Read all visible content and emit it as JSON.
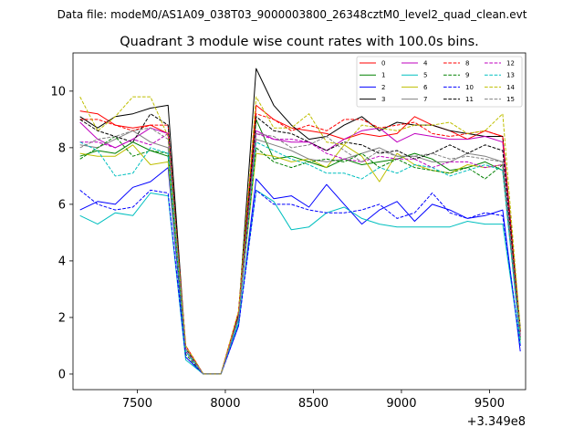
{
  "suptitle": "Data file: modeM0/AS1A09_038T03_9000003800_26348cztM0_level2_quad_clean.evt",
  "chart_data": {
    "type": "line",
    "title": "Quadrant 3 module wise count rates with 100.0s bins.",
    "x_offset_label": "+3.349e8",
    "xlim": [
      7135,
      9705
    ],
    "ylim": [
      -0.55,
      11.35
    ],
    "xticks": [
      7500,
      8000,
      8500,
      9000,
      9500
    ],
    "xtick_labels": [
      "7500",
      "8000",
      "8500",
      "9000",
      "9500"
    ],
    "yticks": [
      0,
      2,
      4,
      6,
      8,
      10
    ],
    "ytick_labels": [
      "0",
      "2",
      "4",
      "6",
      "8",
      "10"
    ],
    "x": [
      7175,
      7275,
      7375,
      7475,
      7575,
      7675,
      7775,
      7875,
      7975,
      8075,
      8175,
      8275,
      8375,
      8475,
      8575,
      8675,
      8775,
      8875,
      8975,
      9075,
      9175,
      9275,
      9375,
      9475,
      9575,
      9675
    ],
    "legend_ncol": 4,
    "legend_position": "top-right",
    "series": [
      {
        "name": "0",
        "color": "#ff0000",
        "dash": "solid",
        "values": [
          9.3,
          9.2,
          8.8,
          8.7,
          8.8,
          8.5,
          1.0,
          0.0,
          0.0,
          2.2,
          9.5,
          9.0,
          8.7,
          8.6,
          8.5,
          8.3,
          8.5,
          8.4,
          8.5,
          9.1,
          8.8,
          8.6,
          8.3,
          8.6,
          8.4,
          1.5
        ]
      },
      {
        "name": "1",
        "color": "#008000",
        "dash": "solid",
        "values": [
          7.7,
          7.9,
          7.8,
          8.2,
          7.9,
          7.7,
          0.8,
          0.0,
          0.0,
          2.0,
          9.0,
          7.6,
          7.7,
          7.5,
          7.3,
          7.6,
          7.4,
          7.5,
          7.6,
          7.8,
          7.6,
          7.2,
          7.3,
          7.5,
          7.2,
          1.2
        ]
      },
      {
        "name": "2",
        "color": "#0000ff",
        "dash": "solid",
        "values": [
          5.8,
          6.1,
          6.0,
          6.6,
          6.8,
          7.3,
          0.6,
          0.0,
          0.0,
          1.7,
          6.9,
          6.2,
          6.3,
          5.9,
          6.7,
          6.0,
          5.3,
          5.8,
          6.1,
          5.4,
          6.0,
          5.8,
          5.5,
          5.6,
          5.8,
          0.8
        ]
      },
      {
        "name": "3",
        "color": "#000000",
        "dash": "solid",
        "values": [
          9.1,
          8.7,
          9.1,
          9.2,
          9.4,
          9.5,
          0.9,
          0.0,
          0.0,
          2.1,
          10.8,
          9.5,
          8.8,
          8.3,
          8.4,
          8.8,
          9.1,
          8.6,
          8.9,
          8.8,
          8.8,
          8.6,
          8.5,
          8.4,
          8.4,
          1.6
        ]
      },
      {
        "name": "4",
        "color": "#bf00bf",
        "dash": "solid",
        "values": [
          8.9,
          8.3,
          8.0,
          8.3,
          8.7,
          8.5,
          0.9,
          0.0,
          0.0,
          2.0,
          8.6,
          8.3,
          8.2,
          8.2,
          7.9,
          8.3,
          8.6,
          8.7,
          8.2,
          8.5,
          8.4,
          8.3,
          8.3,
          8.4,
          8.2,
          1.4
        ]
      },
      {
        "name": "5",
        "color": "#00bfbf",
        "dash": "solid",
        "values": [
          5.6,
          5.3,
          5.7,
          5.6,
          6.4,
          6.3,
          0.5,
          0.0,
          0.0,
          1.8,
          6.5,
          6.1,
          5.1,
          5.2,
          5.7,
          5.9,
          5.5,
          5.3,
          5.2,
          5.2,
          5.2,
          5.2,
          5.4,
          5.3,
          5.3,
          1.0
        ]
      },
      {
        "name": "6",
        "color": "#bfbf00",
        "dash": "solid",
        "values": [
          7.8,
          7.7,
          7.7,
          8.1,
          7.4,
          7.5,
          0.8,
          0.0,
          0.0,
          2.0,
          7.8,
          7.7,
          7.5,
          7.6,
          7.3,
          8.1,
          7.7,
          6.8,
          7.8,
          7.4,
          7.2,
          7.1,
          7.4,
          7.3,
          7.4,
          1.3
        ]
      },
      {
        "name": "7",
        "color": "#808080",
        "dash": "solid",
        "values": [
          8.1,
          8.0,
          8.3,
          8.6,
          8.2,
          8.0,
          0.8,
          0.0,
          0.0,
          2.0,
          8.3,
          8.1,
          7.9,
          7.6,
          7.5,
          7.6,
          7.8,
          8.0,
          7.7,
          7.7,
          7.5,
          7.5,
          7.8,
          7.7,
          7.5,
          1.4
        ]
      },
      {
        "name": "8",
        "color": "#ff0000",
        "dash": "dashed",
        "values": [
          9.0,
          9.0,
          8.8,
          8.6,
          8.8,
          8.8,
          1.0,
          0.0,
          0.0,
          2.2,
          9.2,
          9.0,
          8.6,
          8.8,
          8.6,
          9.0,
          9.0,
          8.7,
          8.8,
          8.9,
          8.5,
          8.4,
          8.5,
          8.6,
          8.4,
          1.5
        ]
      },
      {
        "name": "9",
        "color": "#008000",
        "dash": "dashed",
        "values": [
          7.6,
          8.0,
          8.4,
          7.7,
          7.9,
          7.8,
          0.7,
          0.0,
          0.0,
          2.0,
          8.0,
          7.5,
          7.3,
          7.5,
          7.6,
          7.5,
          7.8,
          7.3,
          7.6,
          7.3,
          7.2,
          7.1,
          7.3,
          6.9,
          7.4,
          1.3
        ]
      },
      {
        "name": "10",
        "color": "#0000ff",
        "dash": "dashed",
        "values": [
          6.5,
          6.0,
          5.8,
          5.9,
          6.5,
          6.4,
          0.6,
          0.0,
          0.0,
          1.7,
          6.5,
          6.0,
          6.0,
          5.8,
          5.7,
          5.7,
          5.8,
          6.0,
          5.5,
          5.7,
          6.4,
          5.7,
          5.5,
          5.7,
          5.6,
          1.0
        ]
      },
      {
        "name": "11",
        "color": "#000000",
        "dash": "dashed",
        "values": [
          9.0,
          8.6,
          8.4,
          8.2,
          9.2,
          8.8,
          0.9,
          0.0,
          0.0,
          2.1,
          9.1,
          8.6,
          8.5,
          8.2,
          7.9,
          8.2,
          8.1,
          7.8,
          7.9,
          7.6,
          7.8,
          8.1,
          7.8,
          8.1,
          7.9,
          1.5
        ]
      },
      {
        "name": "12",
        "color": "#bf00bf",
        "dash": "dashed",
        "values": [
          8.2,
          8.2,
          8.0,
          8.3,
          8.1,
          8.5,
          0.8,
          0.0,
          0.0,
          2.0,
          8.5,
          8.3,
          8.3,
          8.2,
          7.8,
          7.6,
          7.5,
          7.7,
          7.6,
          7.6,
          7.3,
          7.5,
          7.5,
          7.3,
          7.4,
          1.3
        ]
      },
      {
        "name": "13",
        "color": "#00bfbf",
        "dash": "dashed",
        "values": [
          8.2,
          7.9,
          7.0,
          7.1,
          8.0,
          7.8,
          0.8,
          0.0,
          0.0,
          1.9,
          8.2,
          7.9,
          7.6,
          7.4,
          7.1,
          7.1,
          6.9,
          7.3,
          7.1,
          7.4,
          7.3,
          7.0,
          7.2,
          7.4,
          7.2,
          1.1
        ]
      },
      {
        "name": "14",
        "color": "#bfbf00",
        "dash": "dashed",
        "values": [
          9.8,
          8.6,
          9.1,
          9.8,
          9.8,
          8.4,
          1.0,
          0.0,
          0.0,
          2.2,
          9.8,
          8.7,
          8.7,
          9.2,
          8.2,
          8.1,
          8.8,
          8.7,
          8.6,
          8.8,
          8.8,
          8.9,
          8.5,
          8.6,
          9.2,
          1.6
        ]
      },
      {
        "name": "15",
        "color": "#808080",
        "dash": "dashed",
        "values": [
          8.0,
          8.3,
          8.4,
          8.6,
          8.7,
          8.3,
          0.9,
          0.0,
          0.0,
          2.0,
          8.5,
          8.4,
          8.0,
          8.1,
          8.4,
          7.9,
          7.5,
          7.9,
          7.7,
          7.7,
          7.8,
          7.6,
          7.7,
          7.6,
          7.5,
          1.4
        ]
      }
    ]
  }
}
